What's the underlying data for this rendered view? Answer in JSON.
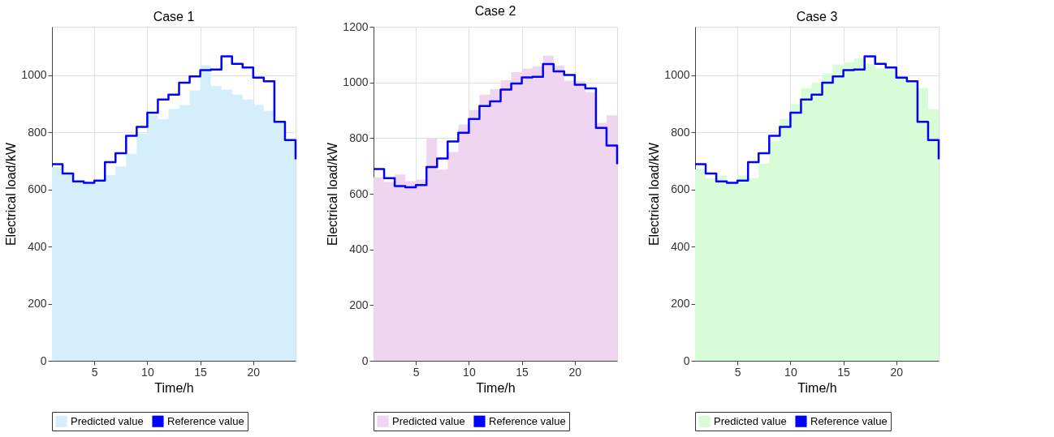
{
  "chart_data": [
    {
      "type": "area",
      "title": "Case 1",
      "xlabel": "Time/h",
      "ylabel": "Electrical load/kW",
      "x": [
        1,
        2,
        3,
        4,
        5,
        6,
        7,
        8,
        9,
        10,
        11,
        12,
        13,
        14,
        15,
        16,
        17,
        18,
        19,
        20,
        21,
        22,
        23,
        24
      ],
      "xlim": [
        1,
        24
      ],
      "xticks": [
        5,
        10,
        15,
        20
      ],
      "ylim": [
        0,
        1170
      ],
      "yticks": [
        0,
        200,
        400,
        600,
        800,
        1000
      ],
      "grid": true,
      "legend": "bottom",
      "series": [
        {
          "name": "Predicted value",
          "color": "#d5eefb",
          "values": [
            678,
            652,
            628,
            620,
            628,
            650,
            680,
            725,
            796,
            860,
            846,
            882,
            896,
            947,
            1035,
            962,
            950,
            933,
            915,
            896,
            876,
            840,
            775,
            710
          ]
        },
        {
          "name": "Reference value",
          "type": "step",
          "color": "#0000ff",
          "values": [
            689,
            656,
            628,
            623,
            631,
            696,
            727,
            788,
            819,
            869,
            915,
            932,
            974,
            996,
            1018,
            1020,
            1066,
            1040,
            1027,
            992,
            979,
            837,
            773,
            706
          ]
        }
      ]
    },
    {
      "type": "area",
      "title": "Case 2",
      "xlabel": "Time/h",
      "ylabel": "Electrical load/kW",
      "x": [
        1,
        2,
        3,
        4,
        5,
        6,
        7,
        8,
        9,
        10,
        11,
        12,
        13,
        14,
        15,
        16,
        17,
        18,
        19,
        20,
        21,
        22,
        23,
        24
      ],
      "xlim": [
        1,
        24
      ],
      "xticks": [
        5,
        10,
        15,
        20
      ],
      "ylim": [
        0,
        1200
      ],
      "yticks": [
        0,
        200,
        400,
        600,
        800,
        1000,
        1200
      ],
      "grid": true,
      "legend": "bottom",
      "series": [
        {
          "name": "Predicted value",
          "color": "#efd5ef",
          "values": [
            659,
            642,
            669,
            645,
            651,
            799,
            687,
            750,
            849,
            901,
            956,
            976,
            1008,
            1037,
            1049,
            1058,
            1096,
            1061,
            1006,
            1004,
            965,
            855,
            882,
            812
          ]
        },
        {
          "name": "Reference value",
          "type": "step",
          "color": "#0000ff",
          "values": [
            689,
            656,
            628,
            623,
            631,
            696,
            727,
            788,
            819,
            869,
            915,
            932,
            974,
            996,
            1018,
            1020,
            1066,
            1040,
            1027,
            992,
            979,
            837,
            773,
            706
          ]
        }
      ]
    },
    {
      "type": "area",
      "title": "Case 3",
      "xlabel": "Time/h",
      "ylabel": "Electrical load/kW",
      "x": [
        1,
        2,
        3,
        4,
        5,
        6,
        7,
        8,
        9,
        10,
        11,
        12,
        13,
        14,
        15,
        16,
        17,
        18,
        19,
        20,
        21,
        22,
        23,
        24
      ],
      "xlim": [
        1,
        24
      ],
      "xticks": [
        5,
        10,
        15,
        20
      ],
      "ylim": [
        0,
        1170
      ],
      "yticks": [
        0,
        200,
        400,
        600,
        800,
        1000
      ],
      "grid": true,
      "legend": "bottom",
      "series": [
        {
          "name": "Predicted value",
          "color": "#d8fbd8",
          "values": [
            670,
            639,
            649,
            628,
            649,
            640,
            690,
            770,
            848,
            899,
            955,
            973,
            1007,
            1037,
            1046,
            1059,
            1040,
            1024,
            1018,
            988,
            973,
            955,
            881,
            803
          ]
        },
        {
          "name": "Reference value",
          "type": "step",
          "color": "#0000ff",
          "values": [
            689,
            656,
            628,
            623,
            631,
            696,
            727,
            788,
            819,
            869,
            915,
            932,
            974,
            996,
            1018,
            1020,
            1066,
            1040,
            1027,
            992,
            979,
            837,
            773,
            706
          ]
        }
      ]
    }
  ]
}
